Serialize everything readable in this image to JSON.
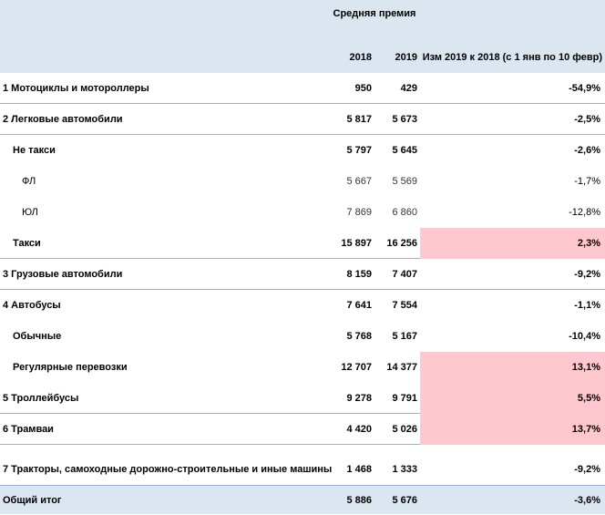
{
  "header": {
    "title": "Средняя премия",
    "col_2018": "2018",
    "col_2019": "2019",
    "col_change": "Изм 2019 к 2018 (с 1 янв по 10 февр)"
  },
  "rows": [
    {
      "name": "1 Мотоциклы и мотороллеры",
      "v2018": "950",
      "v2019": "429",
      "change": "-54,9%"
    },
    {
      "name": "2 Легковые автомобили",
      "v2018": "5 817",
      "v2019": "5 673",
      "change": "-2,5%"
    },
    {
      "name": "Не такси",
      "v2018": "5 797",
      "v2019": "5 645",
      "change": "-2,6%"
    },
    {
      "name": "ФЛ",
      "v2018": "5 667",
      "v2019": "5 569",
      "change": "-1,7%"
    },
    {
      "name": "ЮЛ",
      "v2018": "7 869",
      "v2019": "6 860",
      "change": "-12,8%"
    },
    {
      "name": "Такси",
      "v2018": "15 897",
      "v2019": "16 256",
      "change": "2,3%"
    },
    {
      "name": "3 Грузовые автомобили",
      "v2018": "8 159",
      "v2019": "7 407",
      "change": "-9,2%"
    },
    {
      "name": "4 Автобусы",
      "v2018": "7 641",
      "v2019": "7 554",
      "change": "-1,1%"
    },
    {
      "name": "Обычные",
      "v2018": "5 768",
      "v2019": "5 167",
      "change": "-10,4%"
    },
    {
      "name": "Регулярные перевозки",
      "v2018": "12 707",
      "v2019": "14 377",
      "change": "13,1%"
    },
    {
      "name": "5 Троллейбусы",
      "v2018": "9 278",
      "v2019": "9 791",
      "change": "5,5%"
    },
    {
      "name": "6 Трамваи",
      "v2018": "4 420",
      "v2019": "5 026",
      "change": "13,7%"
    },
    {
      "name": "7 Тракторы, самоходные дорожно-строительные и иные машины",
      "v2018": "1 468",
      "v2019": "1 333",
      "change": "-9,2%"
    },
    {
      "name": "Общий итог",
      "v2018": "5 886",
      "v2019": "5 676",
      "change": "-3,6%"
    }
  ],
  "colors": {
    "header_fill": "#dce6f1",
    "highlight_fill": "#ffc7ce",
    "border": "#95b3d7"
  }
}
